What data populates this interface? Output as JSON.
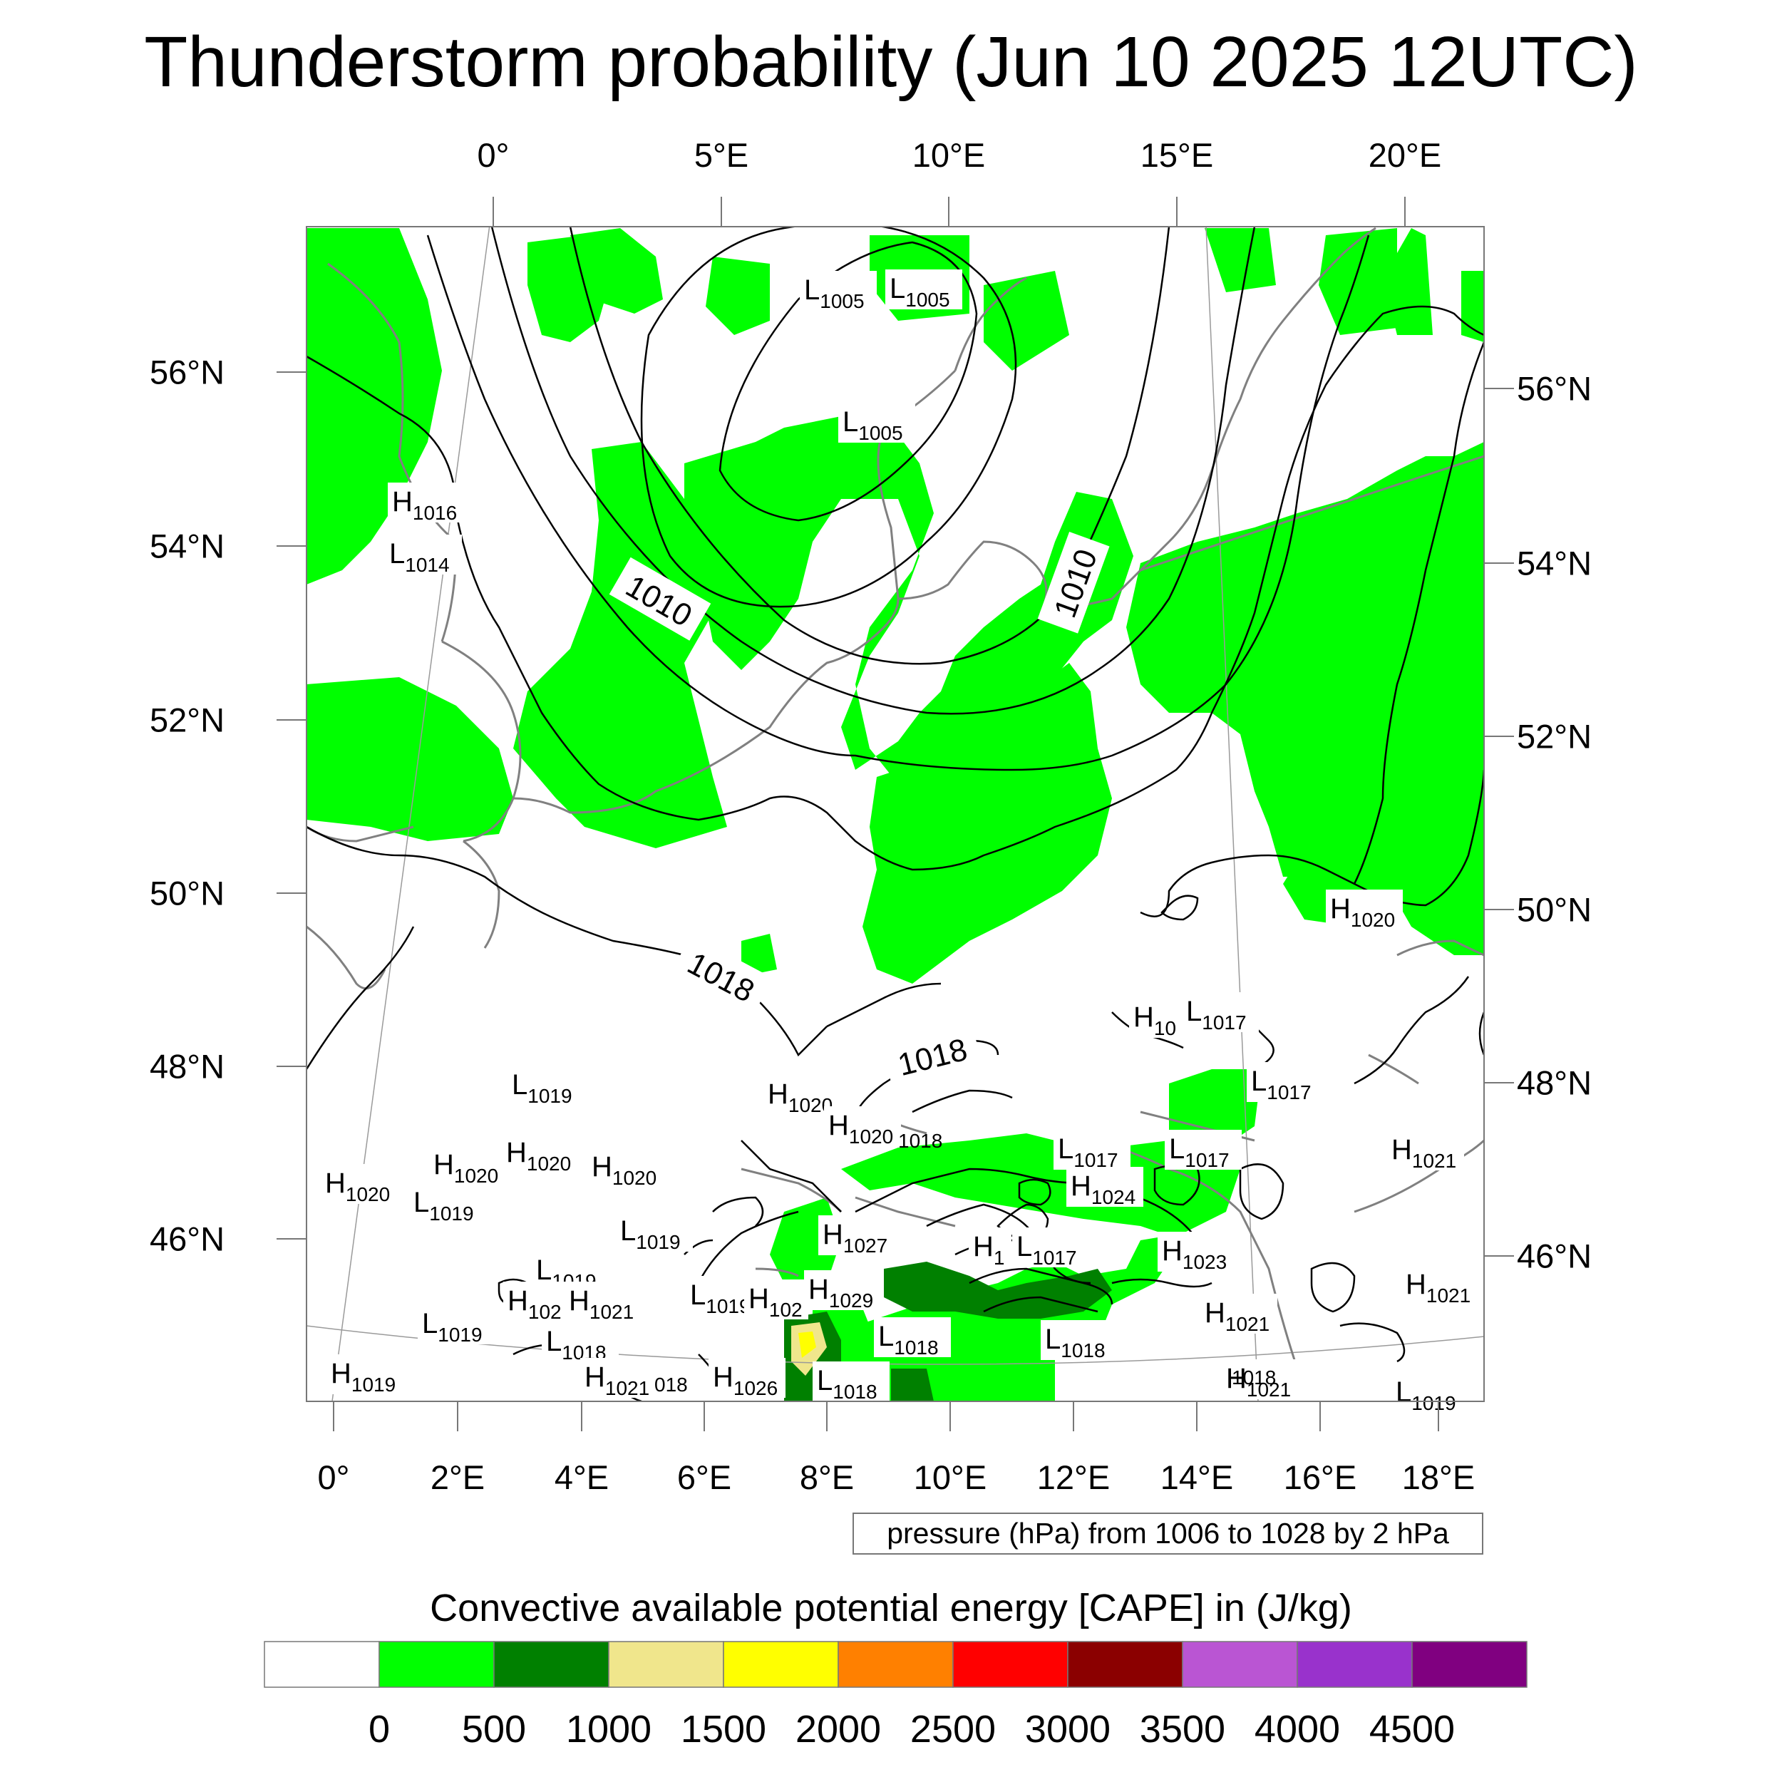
{
  "title": "Thunderstorm probability (Jun 10 2025 12UTC)",
  "top_lon_labels": [
    "0°",
    "5°E",
    "10°E",
    "15°E",
    "20°E"
  ],
  "bottom_lon_labels": [
    "0°",
    "2°E",
    "4°E",
    "6°E",
    "8°E",
    "10°E",
    "12°E",
    "14°E",
    "16°E",
    "18°E"
  ],
  "left_lat_labels": [
    "56°N",
    "54°N",
    "52°N",
    "50°N",
    "48°N",
    "46°N"
  ],
  "right_lat_labels": [
    "56°N",
    "54°N",
    "52°N",
    "50°N",
    "48°N",
    "46°N"
  ],
  "contour_info": "pressure (hPa) from 1006 to 1028 by 2 hPa",
  "colorbar": {
    "title": "Convective available potential energy [CAPE] in (J/kg)",
    "labels": [
      "0",
      "500",
      "1000",
      "1500",
      "2000",
      "2500",
      "3000",
      "3500",
      "4000",
      "4500"
    ],
    "colors": [
      "#ffffff",
      "#00ff00",
      "#008000",
      "#f0e68c",
      "#ffff00",
      "#ff8000",
      "#ff0000",
      "#8b0000",
      "#ba55d3",
      "#9932cc",
      "#800080"
    ]
  },
  "contour_labels": [
    "1010",
    "1010",
    "1018",
    "1018"
  ],
  "pressure_centers": [
    {
      "t": "L",
      "v": "1005"
    },
    {
      "t": "L",
      "v": "1005"
    },
    {
      "t": "L",
      "v": "1005"
    },
    {
      "t": "H",
      "v": "1016"
    },
    {
      "t": "L",
      "v": "1014"
    },
    {
      "t": "H",
      "v": "1020"
    },
    {
      "t": "H",
      "v": "10"
    },
    {
      "t": "L",
      "v": "1017"
    },
    {
      "t": "L",
      "v": "1019"
    },
    {
      "t": "H",
      "v": "1020"
    },
    {
      "t": "L",
      "v": "1017"
    },
    {
      "t": "H",
      "v": "1020"
    },
    {
      "t": "H",
      "v": "1020"
    },
    {
      "t": "H",
      "v": "1020"
    },
    {
      "t": "H",
      "v": "1020"
    },
    {
      "t": "H",
      "v": "1020"
    },
    {
      "t": "L",
      "v": "1019"
    },
    {
      "t": "L",
      "v": "1017"
    },
    {
      "t": "L",
      "v": "1017"
    },
    {
      "t": "H",
      "v": "1021"
    },
    {
      "t": "H",
      "v": "1024"
    },
    {
      "t": "L",
      "v": "1019"
    },
    {
      "t": "H",
      "v": "1027"
    },
    {
      "t": "H",
      "v": "1"
    },
    {
      "t": "L",
      "v": "1017"
    },
    {
      "t": "H",
      "v": "1023"
    },
    {
      "t": "L",
      "v": "1019"
    },
    {
      "t": "H",
      "v": "1021"
    },
    {
      "t": "H",
      "v": "102"
    },
    {
      "t": "H",
      "v": "1021"
    },
    {
      "t": "L",
      "v": "1019"
    },
    {
      "t": "H",
      "v": "102"
    },
    {
      "t": "H",
      "v": "1029"
    },
    {
      "t": "L",
      "v": "1019"
    },
    {
      "t": "L",
      "v": "1018"
    },
    {
      "t": "H",
      "v": "1021"
    },
    {
      "t": "L",
      "v": "1018"
    },
    {
      "t": "H",
      "v": "1021"
    },
    {
      "t": "H",
      "v": "1019"
    },
    {
      "t": "H",
      "v": "1021"
    },
    {
      "t": "H",
      "v": "1026"
    },
    {
      "t": "L",
      "v": "1018"
    },
    {
      "t": "L",
      "v": "1018"
    },
    {
      "t": "L",
      "v": "1019"
    }
  ],
  "map_text_fragments": [
    "1018",
    "018",
    "1018"
  ]
}
